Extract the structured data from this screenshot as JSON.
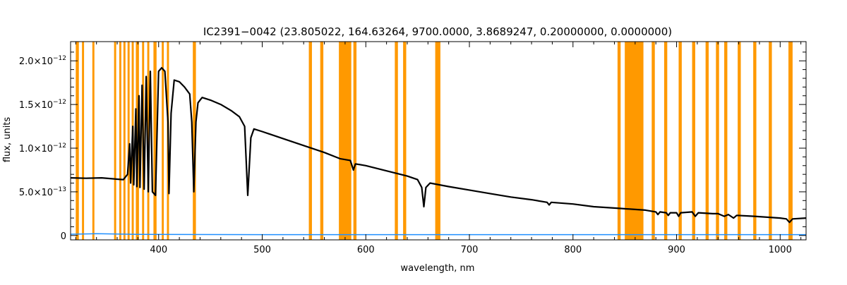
{
  "chart_data": {
    "type": "line",
    "title": "IC2391−0042    (23.805022, 164.63264, 9700.0000, 3.8689247, 0.20000000, 0.0000000)",
    "xlabel": "wavelength, nm",
    "ylabel": "flux, units",
    "xlim": [
      315,
      1025
    ],
    "ylim": [
      -5e-14,
      2.22e-12
    ],
    "x_ticks": [
      {
        "value": 400,
        "label": "400"
      },
      {
        "value": 500,
        "label": "500"
      },
      {
        "value": 600,
        "label": "600"
      },
      {
        "value": 700,
        "label": "700"
      },
      {
        "value": 800,
        "label": "800"
      },
      {
        "value": 900,
        "label": "900"
      },
      {
        "value": 1000,
        "label": "1000"
      }
    ],
    "y_ticks": [
      {
        "value": 0,
        "mant": "0",
        "exp": ""
      },
      {
        "value": 5e-13,
        "mant": "5.0×10",
        "exp": "−13"
      },
      {
        "value": 1e-12,
        "mant": "1.0×10",
        "exp": "−12"
      },
      {
        "value": 1.5e-12,
        "mant": "1.5×10",
        "exp": "−12"
      },
      {
        "value": 2e-12,
        "mant": "2.0×10",
        "exp": "−12"
      }
    ],
    "masked_bands": [
      [
        320,
        323
      ],
      [
        326,
        328
      ],
      [
        336,
        338
      ],
      [
        357,
        359
      ],
      [
        362,
        364
      ],
      [
        366,
        368
      ],
      [
        370,
        372
      ],
      [
        374,
        376
      ],
      [
        378,
        381
      ],
      [
        384,
        386
      ],
      [
        389,
        391
      ],
      [
        395,
        398
      ],
      [
        403,
        405
      ],
      [
        408,
        410
      ],
      [
        433,
        436
      ],
      [
        545,
        548
      ],
      [
        556,
        559
      ],
      [
        574,
        586
      ],
      [
        588,
        591
      ],
      [
        628,
        631
      ],
      [
        636,
        639
      ],
      [
        667,
        672
      ],
      [
        843,
        846
      ],
      [
        850,
        868
      ],
      [
        876,
        879
      ],
      [
        888,
        891
      ],
      [
        902,
        905
      ],
      [
        915,
        918
      ],
      [
        928,
        931
      ],
      [
        938,
        941
      ],
      [
        946,
        949
      ],
      [
        959,
        962
      ],
      [
        974,
        977
      ],
      [
        989,
        992
      ],
      [
        1008,
        1012
      ]
    ],
    "series": [
      {
        "color": "#000000",
        "points": [
          [
            315,
            6.6e-13
          ],
          [
            330,
            6.55e-13
          ],
          [
            345,
            6.6e-13
          ],
          [
            360,
            6.45e-13
          ],
          [
            366,
            6.4e-13
          ],
          [
            370,
            7e-13
          ],
          [
            372,
            1.05e-12
          ],
          [
            373,
            6e-13
          ],
          [
            375,
            1.25e-12
          ],
          [
            376,
            5.8e-13
          ],
          [
            378,
            1.45e-12
          ],
          [
            379,
            5.6e-13
          ],
          [
            381,
            1.6e-12
          ],
          [
            382,
            5.5e-13
          ],
          [
            384,
            1.72e-12
          ],
          [
            386,
            5.3e-13
          ],
          [
            388,
            1.82e-12
          ],
          [
            390,
            5e-13
          ],
          [
            392,
            1.88e-12
          ],
          [
            394,
            5e-13
          ],
          [
            397,
            4.6e-13
          ],
          [
            400,
            1.88e-12
          ],
          [
            403,
            1.92e-12
          ],
          [
            406,
            1.88e-12
          ],
          [
            409,
            1.3e-12
          ],
          [
            410,
            4.8e-13
          ],
          [
            412,
            1.4e-12
          ],
          [
            415,
            1.78e-12
          ],
          [
            420,
            1.76e-12
          ],
          [
            425,
            1.7e-12
          ],
          [
            430,
            1.62e-12
          ],
          [
            432,
            1.3e-12
          ],
          [
            434,
            5e-13
          ],
          [
            436,
            1.3e-12
          ],
          [
            438,
            1.52e-12
          ],
          [
            442,
            1.58e-12
          ],
          [
            450,
            1.55e-12
          ],
          [
            460,
            1.5e-12
          ],
          [
            470,
            1.43e-12
          ],
          [
            478,
            1.36e-12
          ],
          [
            483,
            1.25e-12
          ],
          [
            486,
            4.6e-13
          ],
          [
            489,
            1.12e-12
          ],
          [
            492,
            1.22e-12
          ],
          [
            500,
            1.19e-12
          ],
          [
            520,
            1.11e-12
          ],
          [
            540,
            1.03e-12
          ],
          [
            560,
            9.5e-13
          ],
          [
            575,
            8.8e-13
          ],
          [
            585,
            8.6e-13
          ],
          [
            588,
            7.5e-13
          ],
          [
            590,
            8.2e-13
          ],
          [
            600,
            8e-13
          ],
          [
            620,
            7.4e-13
          ],
          [
            640,
            6.8e-13
          ],
          [
            650,
            6.4e-13
          ],
          [
            654,
            5.5e-13
          ],
          [
            656,
            3.3e-13
          ],
          [
            658,
            5.5e-13
          ],
          [
            662,
            6e-13
          ],
          [
            680,
            5.6e-13
          ],
          [
            700,
            5.2e-13
          ],
          [
            720,
            4.8e-13
          ],
          [
            740,
            4.4e-13
          ],
          [
            760,
            4.1e-13
          ],
          [
            775,
            3.8e-13
          ],
          [
            777,
            3.5e-13
          ],
          [
            779,
            3.8e-13
          ],
          [
            800,
            3.6e-13
          ],
          [
            820,
            3.3e-13
          ],
          [
            845,
            3.1e-13
          ],
          [
            870,
            2.9e-13
          ],
          [
            880,
            2.7e-13
          ],
          [
            882,
            2.4e-13
          ],
          [
            884,
            2.7e-13
          ],
          [
            890,
            2.6e-13
          ],
          [
            892,
            2.3e-13
          ],
          [
            894,
            2.6e-13
          ],
          [
            900,
            2.6e-13
          ],
          [
            902,
            2.2e-13
          ],
          [
            904,
            2.6e-13
          ],
          [
            915,
            2.7e-13
          ],
          [
            918,
            2.2e-13
          ],
          [
            921,
            2.6e-13
          ],
          [
            935,
            2.5e-13
          ],
          [
            940,
            2.5e-13
          ],
          [
            946,
            2.2e-13
          ],
          [
            950,
            2.4e-13
          ],
          [
            955,
            2e-13
          ],
          [
            958,
            2.3e-13
          ],
          [
            975,
            2.2e-13
          ],
          [
            1000,
            2e-13
          ],
          [
            1006,
            1.9e-13
          ],
          [
            1009,
            1.5e-13
          ],
          [
            1012,
            1.9e-13
          ],
          [
            1025,
            2e-13
          ]
        ]
      },
      {
        "color": "#1f8fff",
        "points": [
          [
            315,
            1.5e-14
          ],
          [
            340,
            2e-14
          ],
          [
            380,
            1.2e-14
          ],
          [
            500,
            1e-14
          ],
          [
            760,
            1e-14
          ],
          [
            1025,
            1e-14
          ]
        ]
      }
    ]
  }
}
